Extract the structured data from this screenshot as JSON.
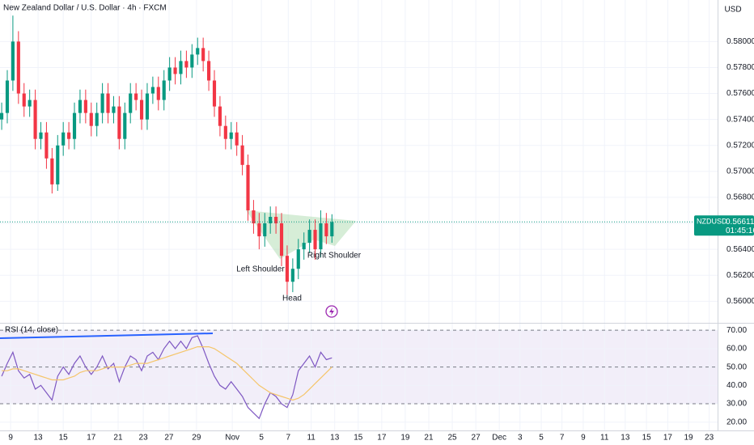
{
  "chart_data": [
    {
      "type": "candlestick",
      "title": "New Zealand Dollar / U.S. Dollar · 4h · FXCM",
      "currency": "USD",
      "symbol": "NZDUSD",
      "last_price": 0.56611,
      "countdown": "01:45:16",
      "up_color": "#089981",
      "down_color": "#f23645",
      "annotations": [
        "Left Shoulder",
        "Head",
        "Right Shoulder"
      ],
      "xlim": [
        -0.3,
        127.9
      ],
      "ylim": [
        0.5584,
        0.5832
      ],
      "yticks": [
        {
          "value": 0.56,
          "label": "0.56000"
        },
        {
          "value": 0.562,
          "label": "0.56200"
        },
        {
          "value": 0.564,
          "label": "0.56400"
        },
        {
          "value": 0.566,
          "label": "0.56600"
        },
        {
          "value": 0.568,
          "label": "0.56800"
        },
        {
          "value": 0.57,
          "label": "0.57000"
        },
        {
          "value": 0.572,
          "label": "0.57200"
        },
        {
          "value": 0.574,
          "label": "0.57400"
        },
        {
          "value": 0.576,
          "label": "0.57600"
        },
        {
          "value": 0.578,
          "label": "0.57800"
        },
        {
          "value": 0.58,
          "label": "0.58000"
        }
      ],
      "grid": true,
      "x": [
        0,
        1,
        2,
        3,
        4,
        5,
        6,
        7,
        8,
        9,
        10,
        11,
        12,
        13,
        14,
        15,
        16,
        17,
        18,
        19,
        20,
        21,
        22,
        23,
        24,
        25,
        26,
        27,
        28,
        29,
        30,
        31,
        32,
        33,
        34,
        35,
        36,
        37,
        38,
        39,
        40,
        41,
        42,
        43,
        44,
        45,
        46,
        47,
        48,
        49,
        50,
        51,
        52,
        53,
        54,
        55,
        56,
        57,
        58,
        59
      ],
      "open": [
        0.574,
        0.5745,
        0.577,
        0.58,
        0.576,
        0.575,
        0.5755,
        0.5725,
        0.573,
        0.571,
        0.569,
        0.572,
        0.573,
        0.5725,
        0.5745,
        0.5755,
        0.5745,
        0.5735,
        0.5745,
        0.576,
        0.5745,
        0.575,
        0.5725,
        0.5745,
        0.576,
        0.5755,
        0.574,
        0.576,
        0.5765,
        0.5755,
        0.577,
        0.578,
        0.5775,
        0.5785,
        0.578,
        0.579,
        0.5795,
        0.5785,
        0.577,
        0.575,
        0.5735,
        0.5725,
        0.573,
        0.572,
        0.5705,
        0.567,
        0.566,
        0.565,
        0.566,
        0.5665,
        0.566,
        0.5635,
        0.5615,
        0.5625,
        0.564,
        0.5645,
        0.5655,
        0.564,
        0.566,
        0.565
      ],
      "high": [
        0.5753,
        0.5778,
        0.582,
        0.5808,
        0.5768,
        0.5763,
        0.5763,
        0.5738,
        0.5738,
        0.5718,
        0.5728,
        0.5738,
        0.5738,
        0.5753,
        0.5763,
        0.5763,
        0.5753,
        0.5753,
        0.5768,
        0.5768,
        0.5758,
        0.5758,
        0.5753,
        0.5768,
        0.5768,
        0.5763,
        0.5768,
        0.5773,
        0.5773,
        0.5778,
        0.5788,
        0.5788,
        0.5793,
        0.5793,
        0.5798,
        0.5803,
        0.5803,
        0.5793,
        0.5778,
        0.5758,
        0.5743,
        0.5738,
        0.5738,
        0.5728,
        0.5713,
        0.5678,
        0.5668,
        0.5668,
        0.5673,
        0.5673,
        0.5668,
        0.5643,
        0.5633,
        0.5648,
        0.5653,
        0.5663,
        0.5663,
        0.567,
        0.5668,
        0.5667
      ],
      "low": [
        0.5732,
        0.5737,
        0.5762,
        0.5752,
        0.5742,
        0.5742,
        0.5717,
        0.5717,
        0.5702,
        0.5683,
        0.5685,
        0.5712,
        0.5717,
        0.5717,
        0.5737,
        0.5737,
        0.5727,
        0.5727,
        0.5737,
        0.5737,
        0.5737,
        0.5717,
        0.5717,
        0.5737,
        0.5747,
        0.5732,
        0.5732,
        0.5752,
        0.5747,
        0.5747,
        0.5762,
        0.5767,
        0.5767,
        0.5772,
        0.5772,
        0.5782,
        0.5777,
        0.5762,
        0.5742,
        0.5727,
        0.5717,
        0.5717,
        0.5712,
        0.5697,
        0.5662,
        0.5652,
        0.564,
        0.5642,
        0.5652,
        0.5652,
        0.5627,
        0.5605,
        0.5607,
        0.5617,
        0.5632,
        0.5637,
        0.5632,
        0.5634,
        0.5644,
        0.5645
      ],
      "close": [
        0.5745,
        0.577,
        0.58,
        0.576,
        0.575,
        0.5755,
        0.5725,
        0.573,
        0.571,
        0.569,
        0.572,
        0.573,
        0.5725,
        0.5745,
        0.5755,
        0.5745,
        0.5735,
        0.5745,
        0.576,
        0.5745,
        0.575,
        0.5725,
        0.5745,
        0.576,
        0.5755,
        0.574,
        0.576,
        0.5765,
        0.5755,
        0.577,
        0.578,
        0.5775,
        0.5785,
        0.578,
        0.579,
        0.5795,
        0.5785,
        0.577,
        0.575,
        0.5735,
        0.5725,
        0.573,
        0.572,
        0.5705,
        0.567,
        0.566,
        0.565,
        0.566,
        0.5665,
        0.566,
        0.5635,
        0.5615,
        0.5625,
        0.564,
        0.5645,
        0.5655,
        0.564,
        0.566,
        0.565,
        0.5661
      ]
    },
    {
      "type": "line",
      "title": "RSI (14, close)",
      "xlim": [
        -0.3,
        127.9
      ],
      "ylim": [
        15.5,
        73.6
      ],
      "yticks": [
        {
          "value": 20,
          "label": "20.00"
        },
        {
          "value": 30,
          "label": "30.00"
        },
        {
          "value": 40,
          "label": "40.00"
        },
        {
          "value": 50,
          "label": "50.00"
        },
        {
          "value": 60,
          "label": "60.00"
        },
        {
          "value": 70,
          "label": "70.00"
        }
      ],
      "bands": [
        30,
        50,
        70
      ],
      "band_color": "#7e57c2",
      "xticks": [
        {
          "value": 1.6,
          "label": "9"
        },
        {
          "value": 6.5,
          "label": "13"
        },
        {
          "value": 11.0,
          "label": "15"
        },
        {
          "value": 16.0,
          "label": "17"
        },
        {
          "value": 20.8,
          "label": "21"
        },
        {
          "value": 25.3,
          "label": "23"
        },
        {
          "value": 29.9,
          "label": "27"
        },
        {
          "value": 34.8,
          "label": "29"
        },
        {
          "value": 41.2,
          "label": "Nov"
        },
        {
          "value": 46.4,
          "label": "5"
        },
        {
          "value": 51.2,
          "label": "7"
        },
        {
          "value": 55.3,
          "label": "11"
        },
        {
          "value": 59.5,
          "label": "13"
        },
        {
          "value": 63.7,
          "label": "15"
        },
        {
          "value": 67.9,
          "label": "17"
        },
        {
          "value": 72.1,
          "label": "19"
        },
        {
          "value": 76.3,
          "label": "21"
        },
        {
          "value": 80.5,
          "label": "25"
        },
        {
          "value": 84.7,
          "label": "27"
        },
        {
          "value": 88.9,
          "label": "Dec"
        },
        {
          "value": 92.6,
          "label": "3"
        },
        {
          "value": 96.4,
          "label": "5"
        },
        {
          "value": 100.1,
          "label": "7"
        },
        {
          "value": 103.9,
          "label": "9"
        },
        {
          "value": 107.7,
          "label": "11"
        },
        {
          "value": 111.4,
          "label": "13"
        },
        {
          "value": 115.2,
          "label": "15"
        },
        {
          "value": 119.0,
          "label": "17"
        },
        {
          "value": 122.7,
          "label": "19"
        },
        {
          "value": 126.4,
          "label": "23"
        }
      ],
      "grid": true,
      "x": [
        0,
        1,
        2,
        3,
        4,
        5,
        6,
        7,
        8,
        9,
        10,
        11,
        12,
        13,
        14,
        15,
        16,
        17,
        18,
        19,
        20,
        21,
        22,
        23,
        24,
        25,
        26,
        27,
        28,
        29,
        30,
        31,
        32,
        33,
        34,
        35,
        36,
        37,
        38,
        39,
        40,
        41,
        42,
        43,
        44,
        45,
        46,
        47,
        48,
        49,
        50,
        51,
        52,
        53,
        54,
        55,
        56,
        57,
        58,
        59
      ],
      "series": [
        {
          "color": "#7e57c2",
          "values": [
            45,
            52,
            58,
            48,
            44,
            46,
            38,
            40,
            36,
            32,
            45,
            50,
            46,
            52,
            56,
            50,
            46,
            50,
            56,
            49,
            52,
            42,
            50,
            56,
            54,
            48,
            56,
            58,
            54,
            60,
            64,
            60,
            64,
            60,
            66,
            67,
            60,
            52,
            45,
            40,
            38,
            42,
            38,
            34,
            28,
            25,
            22,
            30,
            36,
            34,
            30,
            28,
            35,
            48,
            52,
            56,
            50,
            58,
            54,
            55
          ]
        },
        {
          "color": "#f5c56a",
          "values": [
            48,
            48,
            49,
            49,
            48,
            47,
            46,
            45,
            44,
            43,
            43,
            43,
            44,
            45,
            47,
            48,
            48,
            48,
            49,
            50,
            50,
            50,
            50,
            51,
            52,
            52,
            52,
            53,
            54,
            55,
            56,
            57,
            58,
            59,
            60,
            61,
            61,
            61,
            60,
            58,
            56,
            54,
            52,
            49,
            46,
            43,
            40,
            38,
            36,
            35,
            34,
            33,
            32,
            33,
            35,
            38,
            41,
            44,
            47,
            50
          ]
        }
      ]
    }
  ]
}
